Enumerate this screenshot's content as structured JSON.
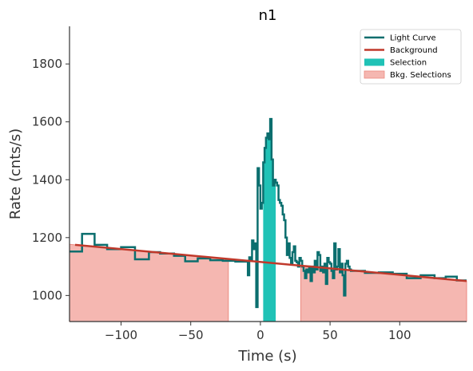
{
  "chart_data": {
    "type": "line",
    "title": "n1",
    "xlabel": "Time (s)",
    "ylabel": "Rate (cnts/s)",
    "xlim": [
      -137,
      148
    ],
    "ylim": [
      910,
      1930
    ],
    "xticks": [
      -100,
      -50,
      0,
      50,
      100
    ],
    "xtick_labels": [
      "−100",
      "−50",
      "0",
      "50",
      "100"
    ],
    "yticks": [
      1000,
      1200,
      1400,
      1600,
      1800
    ],
    "ytick_labels": [
      "1000",
      "1200",
      "1400",
      "1600",
      "1800"
    ],
    "grid": false,
    "legend_position": "top-right",
    "legend": [
      {
        "label": "Light Curve",
        "kind": "line",
        "color": "#0b6e6e"
      },
      {
        "label": "Background",
        "kind": "line",
        "color": "#c0392b"
      },
      {
        "label": "Selection",
        "kind": "patch",
        "color": "#20c2b6"
      },
      {
        "label": "Bkg. Selections",
        "kind": "patch",
        "color": "#f5b7b1"
      }
    ],
    "colors": {
      "light_curve": "#0b6e6e",
      "background": "#c0392b",
      "selection": "#20c2b6",
      "bkg_selection_fill": "#f5b7b1",
      "bkg_selection_edge": "#ec8a80"
    },
    "background_line": {
      "x": [
        -133,
        148
      ],
      "y": [
        1175,
        1050
      ]
    },
    "selection_range": [
      2,
      11
    ],
    "bkg_selection_ranges": [
      [
        -137,
        -23
      ],
      [
        29,
        148
      ]
    ],
    "light_curve_edges": [
      -137,
      -128,
      -119,
      -110,
      -100,
      -90,
      -80,
      -72,
      -62,
      -54,
      -45,
      -36,
      -27,
      -18,
      -9,
      -8,
      -7,
      -6,
      -5,
      -4,
      -3,
      -2,
      -1,
      0,
      1,
      2,
      3,
      4,
      5,
      6,
      7,
      8,
      9,
      10,
      11,
      12,
      13,
      14,
      15,
      16,
      17,
      18,
      19,
      20,
      21,
      22,
      23,
      24,
      25,
      26,
      27,
      28,
      29,
      30,
      31,
      32,
      33,
      34,
      35,
      36,
      37,
      38,
      39,
      40,
      41,
      42,
      43,
      44,
      45,
      46,
      47,
      48,
      49,
      50,
      51,
      52,
      53,
      54,
      55,
      56,
      57,
      58,
      59,
      60,
      61,
      62,
      63,
      64,
      65,
      75,
      85,
      95,
      105,
      115,
      125,
      133,
      141,
      148
    ],
    "light_curve_rates": [
      1152,
      1213,
      1175,
      1160,
      1167,
      1125,
      1150,
      1145,
      1137,
      1118,
      1128,
      1122,
      1120,
      1117,
      1070,
      1132,
      1120,
      1190,
      1160,
      1180,
      960,
      1440,
      1380,
      1300,
      1320,
      1460,
      1510,
      1545,
      1560,
      1540,
      1610,
      1470,
      1380,
      1400,
      1390,
      1380,
      1330,
      1320,
      1310,
      1280,
      1260,
      1200,
      1140,
      1180,
      1130,
      1110,
      1150,
      1170,
      1120,
      1115,
      1100,
      1130,
      1120,
      1100,
      1085,
      1060,
      1090,
      1080,
      1100,
      1050,
      1100,
      1080,
      1120,
      1090,
      1150,
      1140,
      1085,
      1100,
      1080,
      1110,
      1040,
      1130,
      1115,
      1110,
      1085,
      1060,
      1180,
      1090,
      1100,
      1160,
      1080,
      1110,
      1070,
      1000,
      1110,
      1120,
      1100,
      1090,
      1085,
      1078,
      1080,
      1075,
      1060,
      1070,
      1060,
      1065,
      1052
    ]
  }
}
